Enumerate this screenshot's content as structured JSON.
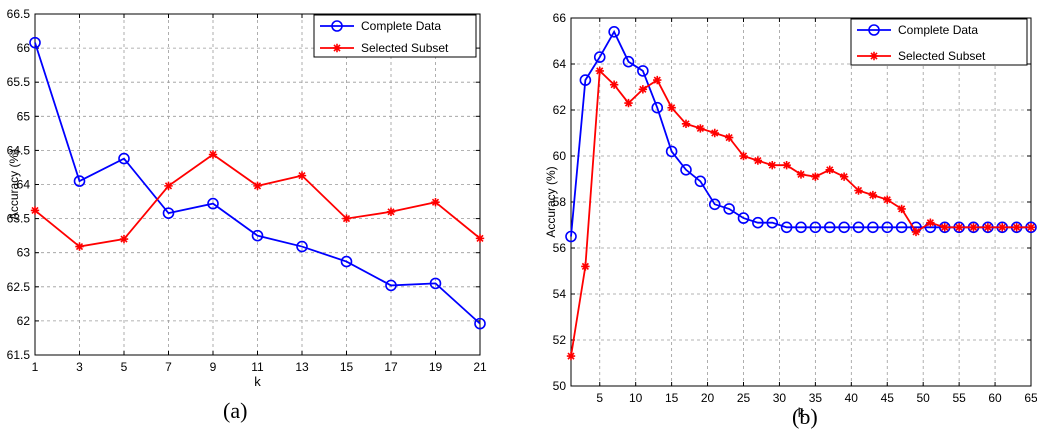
{
  "chart_data": [
    {
      "type": "line",
      "caption": "(a)",
      "xlabel": "k",
      "ylabel": "Accuracy (%)",
      "xlim": [
        1,
        21
      ],
      "ylim": [
        61.5,
        66.5
      ],
      "xticks": [
        "1",
        "3",
        "5",
        "7",
        "9",
        "11",
        "13",
        "15",
        "17",
        "19",
        "21"
      ],
      "yticks": [
        "61.5",
        "62",
        "62.5",
        "63",
        "63.5",
        "64",
        "64.5",
        "65",
        "65.5",
        "66",
        "66.5"
      ],
      "grid": true,
      "legend_position": "top-right",
      "x": [
        1,
        3,
        5,
        7,
        9,
        11,
        13,
        15,
        17,
        19,
        21
      ],
      "series": [
        {
          "name": "Complete Data",
          "color": "#0000ff",
          "marker": "circle",
          "values": [
            66.08,
            64.05,
            64.38,
            63.58,
            63.72,
            63.25,
            63.09,
            62.87,
            62.52,
            62.55,
            61.96
          ]
        },
        {
          "name": "Selected Subset",
          "color": "#ff0000",
          "marker": "star",
          "values": [
            63.62,
            63.09,
            63.2,
            63.98,
            64.44,
            63.98,
            64.13,
            63.5,
            63.6,
            63.74,
            63.21
          ]
        }
      ]
    },
    {
      "type": "line",
      "caption": "(b)",
      "xlabel": "k",
      "ylabel": "Accuracy (%)",
      "xlim": [
        1,
        65
      ],
      "ylim": [
        50,
        66
      ],
      "xticks": [
        "5",
        "10",
        "15",
        "20",
        "25",
        "30",
        "35",
        "40",
        "45",
        "50",
        "55",
        "60",
        "65"
      ],
      "yticks": [
        "50",
        "52",
        "54",
        "56",
        "58",
        "60",
        "62",
        "64",
        "66"
      ],
      "grid": true,
      "legend_position": "top-right",
      "x": [
        1,
        3,
        5,
        7,
        9,
        11,
        13,
        15,
        17,
        19,
        21,
        23,
        25,
        27,
        29,
        31,
        33,
        35,
        37,
        39,
        41,
        43,
        45,
        47,
        49,
        51,
        53,
        55,
        57,
        59,
        61,
        63,
        65
      ],
      "series": [
        {
          "name": "Complete Data",
          "color": "#0000ff",
          "marker": "circle",
          "values": [
            56.5,
            63.3,
            64.3,
            65.4,
            64.1,
            63.7,
            62.1,
            60.2,
            59.4,
            58.9,
            57.9,
            57.7,
            57.3,
            57.1,
            57.1,
            56.9,
            56.9,
            56.9,
            56.9,
            56.9,
            56.9,
            56.9,
            56.9,
            56.9,
            56.9,
            56.9,
            56.9,
            56.9,
            56.9,
            56.9,
            56.9,
            56.9,
            56.9
          ]
        },
        {
          "name": "Selected Subset",
          "color": "#ff0000",
          "marker": "star",
          "values": [
            51.3,
            55.2,
            63.7,
            63.1,
            62.3,
            62.9,
            63.3,
            62.1,
            61.4,
            61.2,
            61.0,
            60.8,
            60.0,
            59.8,
            59.6,
            59.6,
            59.2,
            59.1,
            59.4,
            59.1,
            58.5,
            58.3,
            58.1,
            57.7,
            56.7,
            57.1,
            56.9,
            56.9,
            56.9,
            56.9,
            56.9,
            56.9,
            56.9
          ]
        }
      ]
    }
  ]
}
